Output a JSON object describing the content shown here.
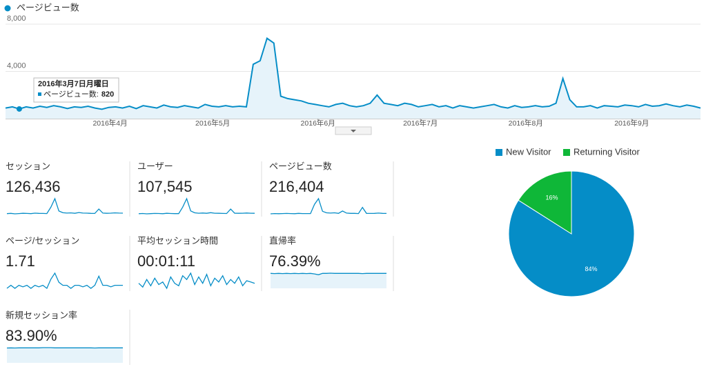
{
  "chart_data": [
    {
      "type": "line",
      "series": [
        {
          "name": "ページビュー数",
          "color": "#058dc7",
          "values": [
            900,
            1000,
            820,
            1000,
            900,
            1050,
            950,
            1100,
            1000,
            850,
            1000,
            950,
            1050,
            900,
            800,
            950,
            1000,
            900,
            1050,
            850,
            1100,
            1000,
            900,
            1150,
            1000,
            950,
            1100,
            1000,
            900,
            1200,
            1050,
            1000,
            1100,
            1000,
            1050,
            1000,
            4600,
            4900,
            6800,
            6400,
            1900,
            1700,
            1600,
            1500,
            1300,
            1200,
            1100,
            1000,
            1200,
            1300,
            1100,
            1000,
            1100,
            1300,
            2000,
            1300,
            1200,
            1100,
            1300,
            1200,
            1000,
            1100,
            1200,
            1000,
            1100,
            900,
            1100,
            1000,
            900,
            1000,
            1100,
            1200,
            1000,
            900,
            1100,
            950,
            1000,
            1100,
            1000,
            1050,
            1300,
            3400,
            1600,
            1000,
            1000,
            1100,
            900,
            1100,
            1050,
            1000,
            1150,
            1100,
            1000,
            1200,
            1050,
            1100,
            1250,
            1100,
            1000,
            1150,
            1050,
            900
          ]
        }
      ],
      "ylim": [
        0,
        8000
      ],
      "yticks": [
        {
          "value": 4000,
          "label": "4,000"
        },
        {
          "value": 8000,
          "label": "8,000"
        }
      ],
      "xlim": [
        0,
        101
      ],
      "xticks": [
        {
          "value": 15.2,
          "label": "2016年4月"
        },
        {
          "value": 30.1,
          "label": "2016年5月"
        },
        {
          "value": 45.4,
          "label": "2016年6月"
        },
        {
          "value": 60.3,
          "label": "2016年7月"
        },
        {
          "value": 75.6,
          "label": "2016年8月"
        },
        {
          "value": 91,
          "label": "2016年9月"
        }
      ],
      "grid": true,
      "tooltip": {
        "title": "2016年3月7日月曜日",
        "label": "ページビュー数:",
        "value": 820,
        "point": 2
      }
    },
    {
      "type": "pie",
      "categories": [
        "New Visitor",
        "Returning Visitor"
      ],
      "values": [
        84,
        16
      ],
      "value_labels": [
        "84%",
        "16%"
      ],
      "colors": [
        "#058dc7",
        "#0fb738"
      ]
    }
  ],
  "metrics": [
    {
      "label": "セッション",
      "value": "126,436",
      "area": false,
      "trend": [
        420,
        450,
        400,
        430,
        460,
        440,
        420,
        470,
        450,
        440,
        430,
        1100,
        2000,
        700,
        520,
        480,
        500,
        460,
        540,
        480,
        470,
        450,
        440,
        900,
        480,
        460,
        470,
        500,
        480,
        470
      ]
    },
    {
      "label": "ユーザー",
      "value": "107,545",
      "area": false,
      "trend": [
        380,
        400,
        370,
        390,
        410,
        400,
        380,
        420,
        400,
        390,
        390,
        1000,
        1800,
        640,
        470,
        430,
        450,
        420,
        480,
        430,
        420,
        410,
        400,
        820,
        430,
        420,
        430,
        450,
        430,
        420
      ]
    },
    {
      "label": "ページビュー数",
      "value": "216,404",
      "area": false,
      "trend": [
        900,
        1000,
        950,
        1000,
        1050,
        1000,
        950,
        1100,
        1000,
        1000,
        1000,
        4600,
        6800,
        1900,
        1300,
        1200,
        1300,
        1100,
        2000,
        1200,
        1100,
        1100,
        1000,
        3400,
        1100,
        1050,
        1100,
        1200,
        1100,
        1050
      ]
    },
    {
      "label": "ページ/セッション",
      "value": "1.71",
      "area": false,
      "trend": [
        1.6,
        1.7,
        1.6,
        1.7,
        1.65,
        1.7,
        1.6,
        1.7,
        1.65,
        1.7,
        1.6,
        1.9,
        2.1,
        1.8,
        1.7,
        1.7,
        1.6,
        1.7,
        1.7,
        1.65,
        1.7,
        1.6,
        1.7,
        2.0,
        1.7,
        1.7,
        1.65,
        1.7,
        1.7,
        1.7
      ]
    },
    {
      "label": "平均セッション時間",
      "value": "00:01:11",
      "area": false,
      "trend": [
        70,
        55,
        85,
        60,
        90,
        65,
        75,
        50,
        95,
        70,
        60,
        100,
        85,
        110,
        65,
        95,
        70,
        105,
        60,
        90,
        75,
        100,
        65,
        85,
        70,
        95,
        60,
        80,
        75,
        70
      ]
    },
    {
      "label": "直帰率",
      "value": "76.39%",
      "area": true,
      "trend": [
        77,
        76,
        77,
        76,
        77,
        76,
        77,
        76,
        77,
        76,
        77,
        74,
        70,
        77,
        77,
        78,
        77,
        77,
        77,
        77,
        77,
        77,
        77,
        76,
        77,
        77,
        77,
        77,
        77,
        77
      ]
    },
    {
      "label": "新規セッション率",
      "value": "83.90%",
      "area": true,
      "trend": [
        83,
        84,
        83,
        84,
        84,
        84,
        84,
        84,
        84,
        85,
        85,
        85,
        84,
        84,
        84,
        84,
        84,
        84,
        84,
        84,
        84,
        84,
        83,
        84,
        84,
        84,
        84,
        84,
        84,
        84
      ]
    }
  ]
}
